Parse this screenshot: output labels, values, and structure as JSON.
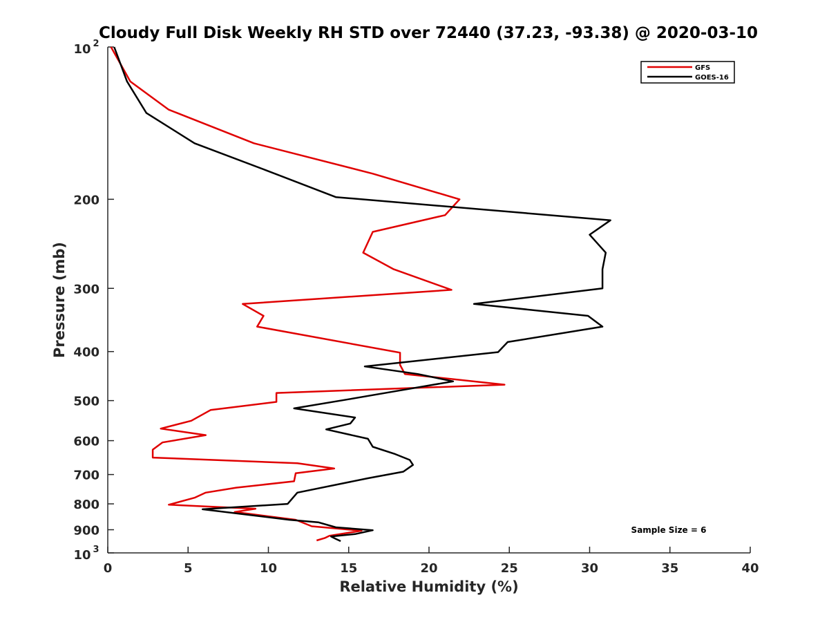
{
  "chart_data": {
    "type": "line",
    "title": "Cloudy Full Disk Weekly RH STD over 72440 (37.23, -93.38) @ 2020-03-10",
    "xlabel": "Relative Humidity (%)",
    "ylabel": "Pressure (mb)",
    "xlim": [
      0,
      40
    ],
    "ylim": [
      100,
      1000
    ],
    "y_scale": "log",
    "y_reversed": true,
    "x_ticks": [
      "0",
      "5",
      "10",
      "15",
      "20",
      "25",
      "30",
      "35",
      "40"
    ],
    "y_ticks": [
      {
        "value": 100,
        "base": "10",
        "exp": "2"
      },
      {
        "value": 200,
        "label": "200"
      },
      {
        "value": 300,
        "label": "300"
      },
      {
        "value": 400,
        "label": "400"
      },
      {
        "value": 500,
        "label": "500"
      },
      {
        "value": 600,
        "label": "600"
      },
      {
        "value": 700,
        "label": "700"
      },
      {
        "value": 800,
        "label": "800"
      },
      {
        "value": 900,
        "label": "900"
      },
      {
        "value": 1000,
        "base": "10",
        "exp": "3"
      }
    ],
    "grid": false,
    "legend_position": "top-right",
    "annotation": "Sample Size = 6",
    "series": [
      {
        "name": "GFS",
        "color": "#e00000",
        "points": [
          [
            0.2,
            100
          ],
          [
            1.4,
            117
          ],
          [
            3.8,
            133
          ],
          [
            9.1,
            155
          ],
          [
            16.5,
            178
          ],
          [
            21.9,
            200
          ],
          [
            21.0,
            215
          ],
          [
            16.5,
            232
          ],
          [
            15.9,
            255
          ],
          [
            17.8,
            275
          ],
          [
            21.4,
            302
          ],
          [
            8.4,
            322
          ],
          [
            9.7,
            340
          ],
          [
            9.3,
            357
          ],
          [
            18.2,
            402
          ],
          [
            18.2,
            425
          ],
          [
            18.5,
            443
          ],
          [
            24.7,
            465
          ],
          [
            10.5,
            483
          ],
          [
            10.5,
            503
          ],
          [
            6.4,
            522
          ],
          [
            5.2,
            548
          ],
          [
            3.3,
            568
          ],
          [
            6.1,
            585
          ],
          [
            3.4,
            605
          ],
          [
            2.8,
            625
          ],
          [
            2.8,
            648
          ],
          [
            11.8,
            665
          ],
          [
            14.1,
            681
          ],
          [
            11.7,
            696
          ],
          [
            11.6,
            722
          ],
          [
            8.0,
            743
          ],
          [
            6.1,
            760
          ],
          [
            5.4,
            778
          ],
          [
            3.8,
            803
          ],
          [
            9.2,
            818
          ],
          [
            7.9,
            830
          ],
          [
            11.7,
            860
          ],
          [
            12.7,
            886
          ],
          [
            15.8,
            904
          ],
          [
            13.8,
            925
          ],
          [
            13.5,
            935
          ],
          [
            13.0,
            945
          ]
        ]
      },
      {
        "name": "GOES-16",
        "color": "#000000",
        "points": [
          [
            0.4,
            100
          ],
          [
            1.2,
            117
          ],
          [
            2.4,
            135
          ],
          [
            5.4,
            155
          ],
          [
            9.8,
            175
          ],
          [
            14.2,
            198
          ],
          [
            31.3,
            220
          ],
          [
            30.0,
            235
          ],
          [
            31.0,
            255
          ],
          [
            30.8,
            275
          ],
          [
            30.8,
            300
          ],
          [
            22.8,
            322
          ],
          [
            29.9,
            340
          ],
          [
            30.8,
            357
          ],
          [
            24.9,
            383
          ],
          [
            24.3,
            401
          ],
          [
            16.0,
            428
          ],
          [
            19.3,
            443
          ],
          [
            21.5,
            458
          ],
          [
            18.1,
            478
          ],
          [
            15.0,
            497
          ],
          [
            11.6,
            518
          ],
          [
            15.4,
            540
          ],
          [
            15.1,
            555
          ],
          [
            13.6,
            570
          ],
          [
            16.2,
            595
          ],
          [
            16.5,
            617
          ],
          [
            17.9,
            638
          ],
          [
            18.8,
            655
          ],
          [
            19.0,
            670
          ],
          [
            18.4,
            691
          ],
          [
            16.2,
            712
          ],
          [
            11.8,
            760
          ],
          [
            11.2,
            800
          ],
          [
            5.9,
            820
          ],
          [
            11.3,
            860
          ],
          [
            13.1,
            870
          ],
          [
            14.2,
            890
          ],
          [
            16.5,
            902
          ],
          [
            15.4,
            918
          ],
          [
            13.9,
            928
          ],
          [
            14.2,
            938
          ],
          [
            14.5,
            948
          ]
        ]
      }
    ]
  }
}
